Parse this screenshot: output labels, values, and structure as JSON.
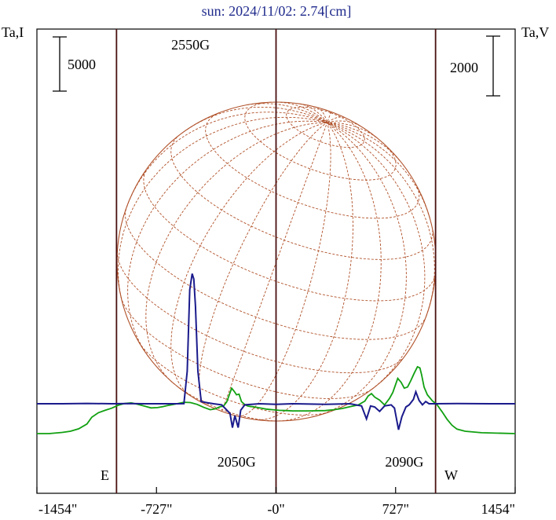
{
  "title": "sun: 2024/11/02: 2.74[cm]",
  "left_axis_label": "Ta,I",
  "right_axis_label": "Ta,V",
  "left_scale_bar": "5000",
  "right_scale_bar": "2000",
  "east_label": "E",
  "west_label": "W",
  "colors": {
    "I": "#1a1a8c",
    "V": "#11a011",
    "disk": "#b05028",
    "limb": "#4a1010",
    "title": "#1f2a8c"
  },
  "chart_data": {
    "type": "line",
    "title": "sun: 2024/11/02: 2.74[cm]",
    "x_unit": "arcsec",
    "x_tick_labels": [
      "-1454\"",
      "-727\"",
      "-0\"",
      "727\"",
      "1454\""
    ],
    "x_ticks": [
      -1454,
      -727,
      0,
      727,
      1454
    ],
    "xlim": [
      -1454,
      1454
    ],
    "limb_positions": [
      -970,
      0,
      970
    ],
    "annotations": [
      {
        "text": "2550G",
        "x": -520,
        "series": "Ta,I"
      },
      {
        "text": "2050G",
        "x": -240,
        "series": "Ta,I"
      },
      {
        "text": "2090G",
        "x": 780,
        "series": "Ta,I"
      }
    ],
    "series": [
      {
        "name": "Ta,I",
        "axis": "left",
        "points": [
          [
            -1454,
            0
          ],
          [
            -1300,
            0
          ],
          [
            -1150,
            30
          ],
          [
            -1000,
            0
          ],
          [
            -900,
            20
          ],
          [
            -800,
            0
          ],
          [
            -700,
            0
          ],
          [
            -600,
            0
          ],
          [
            -560,
            10
          ],
          [
            -540,
            3000
          ],
          [
            -525,
            10500
          ],
          [
            -510,
            12000
          ],
          [
            -500,
            11500
          ],
          [
            -490,
            9000
          ],
          [
            -475,
            3000
          ],
          [
            -455,
            200
          ],
          [
            -420,
            100
          ],
          [
            -380,
            0
          ],
          [
            -330,
            -100
          ],
          [
            -280,
            -900
          ],
          [
            -265,
            -2200
          ],
          [
            -250,
            -1100
          ],
          [
            -230,
            -2200
          ],
          [
            -215,
            -600
          ],
          [
            -190,
            -100
          ],
          [
            -100,
            0
          ],
          [
            0,
            -50
          ],
          [
            100,
            0
          ],
          [
            300,
            -50
          ],
          [
            450,
            0
          ],
          [
            520,
            -200
          ],
          [
            550,
            -1400
          ],
          [
            575,
            -200
          ],
          [
            600,
            -300
          ],
          [
            630,
            -700
          ],
          [
            660,
            -200
          ],
          [
            700,
            -100
          ],
          [
            720,
            -400
          ],
          [
            745,
            -2400
          ],
          [
            765,
            -1200
          ],
          [
            790,
            -300
          ],
          [
            810,
            -100
          ],
          [
            835,
            400
          ],
          [
            850,
            1100
          ],
          [
            870,
            300
          ],
          [
            890,
            -100
          ],
          [
            910,
            200
          ],
          [
            930,
            0
          ],
          [
            970,
            0
          ],
          [
            1100,
            20
          ],
          [
            1300,
            0
          ],
          [
            1454,
            0
          ]
        ]
      },
      {
        "name": "Ta,V",
        "axis": "right",
        "points": [
          [
            -1454,
            -1000
          ],
          [
            -1380,
            -1000
          ],
          [
            -1300,
            -960
          ],
          [
            -1250,
            -920
          ],
          [
            -1200,
            -840
          ],
          [
            -1150,
            -680
          ],
          [
            -1120,
            -450
          ],
          [
            -1080,
            -300
          ],
          [
            -1040,
            -220
          ],
          [
            -1000,
            -150
          ],
          [
            -960,
            -50
          ],
          [
            -920,
            10
          ],
          [
            -880,
            30
          ],
          [
            -840,
            -20
          ],
          [
            -800,
            -80
          ],
          [
            -760,
            -140
          ],
          [
            -720,
            -130
          ],
          [
            -690,
            -100
          ],
          [
            -660,
            -60
          ],
          [
            -620,
            -20
          ],
          [
            -560,
            50
          ],
          [
            -520,
            40
          ],
          [
            -480,
            -20
          ],
          [
            -440,
            -120
          ],
          [
            -400,
            -200
          ],
          [
            -370,
            -170
          ],
          [
            -340,
            -100
          ],
          [
            -320,
            -80
          ],
          [
            -300,
            60
          ],
          [
            -270,
            520
          ],
          [
            -255,
            420
          ],
          [
            -240,
            300
          ],
          [
            -225,
            320
          ],
          [
            -210,
            70
          ],
          [
            -190,
            -30
          ],
          [
            -170,
            -80
          ],
          [
            -140,
            -100
          ],
          [
            -100,
            -140
          ],
          [
            -60,
            -180
          ],
          [
            -20,
            -200
          ],
          [
            20,
            -220
          ],
          [
            60,
            -230
          ],
          [
            100,
            -240
          ],
          [
            200,
            -240
          ],
          [
            300,
            -230
          ],
          [
            350,
            -200
          ],
          [
            400,
            -160
          ],
          [
            450,
            -100
          ],
          [
            500,
            -40
          ],
          [
            540,
            90
          ],
          [
            560,
            260
          ],
          [
            580,
            340
          ],
          [
            600,
            220
          ],
          [
            630,
            120
          ],
          [
            660,
            -40
          ],
          [
            690,
            180
          ],
          [
            710,
            380
          ],
          [
            740,
            850
          ],
          [
            760,
            720
          ],
          [
            780,
            520
          ],
          [
            800,
            560
          ],
          [
            820,
            780
          ],
          [
            840,
            1020
          ],
          [
            860,
            1240
          ],
          [
            875,
            1200
          ],
          [
            885,
            980
          ],
          [
            900,
            560
          ],
          [
            920,
            300
          ],
          [
            950,
            100
          ],
          [
            980,
            -40
          ],
          [
            1010,
            -270
          ],
          [
            1040,
            -520
          ],
          [
            1070,
            -720
          ],
          [
            1100,
            -850
          ],
          [
            1150,
            -920
          ],
          [
            1250,
            -970
          ],
          [
            1454,
            -1000
          ]
        ]
      }
    ]
  }
}
